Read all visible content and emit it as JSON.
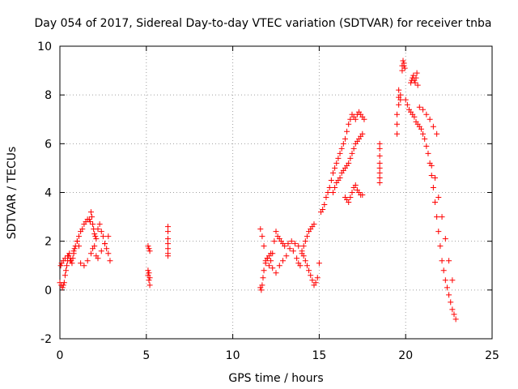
{
  "chart_data": {
    "type": "scatter",
    "title": "Day 054 of 2017, Sidereal Day-to-day VTEC variation (SDTVAR) for receiver tnba",
    "xlabel": "GPS time / hours",
    "ylabel": "SDTVAR / TECUs",
    "xlim": [
      0,
      25
    ],
    "ylim": [
      -2,
      10
    ],
    "xticks": [
      "0",
      "5",
      "10",
      "15",
      "20",
      "25"
    ],
    "yticks": [
      "-2",
      "0",
      "2",
      "4",
      "6",
      "8",
      "10"
    ],
    "grid": true,
    "marker": "+",
    "marker_color": "#ff0000",
    "series": [
      {
        "name": "SDTVAR",
        "x": [
          0.0,
          0.08,
          0.15,
          0.2,
          0.25,
          0.3,
          0.35,
          0.4,
          0.45,
          0.5,
          0.55,
          0.6,
          0.65,
          0.7,
          0.75,
          0.8,
          0.85,
          0.9,
          1.0,
          1.1,
          1.2,
          1.3,
          1.4,
          1.5,
          1.6,
          1.7,
          1.75,
          1.8,
          1.85,
          1.9,
          1.95,
          2.0,
          2.05,
          2.1,
          2.2,
          2.3,
          2.4,
          2.5,
          2.6,
          2.7,
          2.8,
          2.9,
          0.05,
          0.1,
          0.2,
          0.3,
          0.45,
          0.6,
          0.8,
          1.0,
          1.1,
          1.2,
          1.4,
          1.6,
          1.8,
          1.9,
          2.0,
          2.1,
          2.2,
          2.4,
          2.6,
          2.8,
          5.1,
          5.15,
          5.2,
          5.1,
          5.15,
          5.2,
          5.1,
          5.15,
          5.2,
          6.25,
          6.25,
          6.25,
          6.25,
          6.25,
          6.25,
          6.25,
          11.6,
          11.65,
          11.7,
          11.75,
          11.8,
          11.9,
          12.0,
          12.1,
          12.2,
          12.3,
          12.4,
          12.5,
          12.6,
          12.7,
          12.8,
          12.9,
          13.0,
          13.2,
          13.4,
          13.6,
          13.8,
          14.0,
          14.1,
          14.2,
          14.3,
          14.4,
          14.5,
          14.6,
          14.7,
          14.8,
          14.9,
          15.0,
          11.6,
          11.7,
          11.8,
          11.9,
          12.0,
          12.1,
          12.2,
          12.3,
          12.5,
          12.7,
          12.9,
          13.1,
          13.3,
          13.5,
          13.7,
          13.8,
          13.9,
          14.0,
          14.1,
          14.2,
          14.3,
          14.4,
          14.5,
          14.6,
          14.7,
          15.1,
          15.2,
          15.3,
          15.4,
          15.5,
          15.6,
          15.7,
          15.8,
          15.9,
          16.0,
          16.1,
          16.2,
          16.3,
          16.4,
          16.5,
          16.6,
          16.7,
          16.8,
          16.9,
          17.0,
          17.1,
          17.2,
          17.3,
          17.4,
          17.5,
          17.6,
          15.8,
          15.9,
          16.0,
          16.1,
          16.2,
          16.3,
          16.4,
          16.5,
          16.6,
          16.7,
          16.8,
          16.9,
          17.0,
          17.1,
          17.2,
          17.3,
          17.4,
          17.5,
          16.5,
          16.6,
          16.7,
          16.8,
          16.9,
          17.0,
          17.1,
          17.2,
          17.3,
          17.4,
          17.5,
          18.5,
          18.5,
          18.5,
          18.5,
          18.5,
          18.5,
          18.5,
          18.5,
          19.5,
          19.5,
          19.5,
          19.6,
          19.6,
          19.6,
          19.7,
          19.7,
          19.8,
          19.8,
          19.85,
          19.9,
          19.9,
          19.95,
          20.0,
          20.1,
          20.2,
          20.3,
          20.4,
          20.5,
          20.6,
          20.7,
          20.8,
          20.9,
          21.0,
          21.1,
          21.2,
          21.3,
          21.4,
          21.5,
          21.6,
          21.7,
          21.8,
          21.9,
          22.0,
          22.1,
          22.2,
          22.3,
          22.4,
          22.5,
          22.6,
          22.7,
          22.8,
          22.9,
          20.3,
          20.35,
          20.4,
          20.45,
          20.5,
          20.55,
          20.6,
          20.65,
          20.7,
          21.5,
          21.7,
          21.9,
          22.1,
          22.3,
          22.5,
          22.7,
          20.8,
          21.0,
          21.2,
          21.4,
          21.6,
          21.8
        ],
        "y": [
          0.3,
          0.2,
          0.1,
          0.2,
          0.3,
          0.6,
          0.8,
          1.0,
          1.2,
          1.4,
          1.5,
          1.3,
          1.2,
          1.1,
          1.3,
          1.5,
          1.7,
          1.8,
          2.0,
          2.2,
          2.4,
          2.5,
          2.7,
          2.8,
          2.9,
          2.9,
          2.8,
          3.2,
          3.0,
          2.7,
          2.5,
          2.3,
          2.2,
          2.1,
          2.5,
          2.7,
          2.4,
          2.2,
          1.9,
          1.7,
          1.5,
          1.2,
          1.0,
          1.1,
          1.2,
          1.3,
          1.4,
          1.2,
          1.6,
          2.0,
          1.8,
          1.1,
          1.0,
          1.2,
          1.5,
          1.7,
          1.8,
          1.4,
          1.3,
          1.6,
          1.9,
          2.2,
          1.8,
          1.7,
          1.6,
          0.6,
          0.4,
          0.2,
          0.8,
          0.7,
          0.5,
          2.6,
          2.4,
          2.1,
          1.9,
          1.7,
          1.5,
          1.4,
          0.1,
          0.0,
          0.2,
          0.5,
          0.8,
          1.1,
          1.3,
          1.4,
          1.5,
          1.5,
          2.0,
          2.4,
          2.2,
          2.1,
          2.0,
          1.9,
          1.8,
          1.9,
          2.0,
          1.9,
          1.8,
          1.6,
          1.4,
          1.2,
          1.0,
          0.8,
          0.6,
          0.4,
          0.2,
          0.3,
          0.5,
          1.1,
          2.5,
          2.2,
          1.8,
          1.2,
          1.3,
          1.0,
          1.2,
          0.9,
          0.7,
          1.0,
          1.2,
          1.4,
          1.7,
          1.6,
          1.3,
          1.1,
          1.0,
          1.5,
          1.8,
          2.0,
          2.2,
          2.4,
          2.5,
          2.6,
          2.7,
          3.2,
          3.3,
          3.5,
          3.8,
          4.0,
          4.2,
          4.5,
          4.8,
          5.0,
          5.2,
          5.4,
          5.6,
          5.8,
          6.0,
          6.2,
          6.5,
          6.8,
          7.0,
          7.2,
          7.1,
          7.0,
          7.2,
          7.3,
          7.2,
          7.1,
          7.0,
          4.0,
          4.2,
          4.4,
          4.5,
          4.6,
          4.8,
          4.9,
          5.0,
          5.1,
          5.2,
          5.4,
          5.6,
          5.8,
          6.0,
          6.1,
          6.2,
          6.3,
          6.4,
          3.8,
          3.7,
          3.6,
          3.8,
          4.0,
          4.2,
          4.3,
          4.1,
          4.0,
          3.9,
          3.9,
          6.0,
          5.8,
          5.5,
          5.2,
          5.0,
          4.8,
          4.6,
          4.4,
          6.4,
          6.8,
          7.2,
          7.6,
          7.9,
          8.2,
          8.0,
          7.8,
          9.0,
          9.2,
          9.4,
          9.3,
          9.2,
          9.1,
          7.8,
          7.6,
          7.4,
          7.3,
          7.2,
          7.1,
          6.9,
          6.8,
          6.7,
          6.6,
          6.4,
          6.2,
          5.9,
          5.6,
          5.2,
          4.7,
          4.2,
          3.6,
          3.0,
          2.4,
          1.8,
          1.2,
          0.8,
          0.4,
          0.1,
          -0.2,
          -0.5,
          -0.8,
          -1.0,
          -1.2,
          8.5,
          8.6,
          8.7,
          8.8,
          8.6,
          8.5,
          8.7,
          8.9,
          8.4,
          5.1,
          4.6,
          3.8,
          3.0,
          2.1,
          1.2,
          0.4,
          7.5,
          7.4,
          7.2,
          7.0,
          6.7,
          6.4
        ]
      }
    ]
  }
}
